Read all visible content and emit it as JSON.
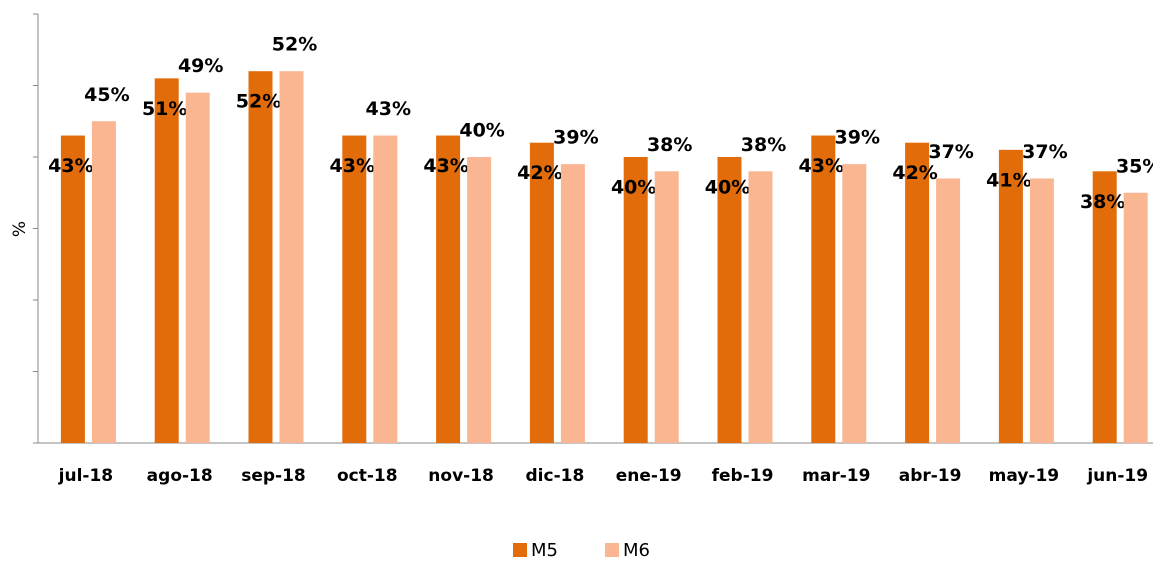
{
  "chart_data": {
    "type": "bar",
    "y_label": "%",
    "categories": [
      "jul-18",
      "ago-18",
      "sep-18",
      "oct-18",
      "nov-18",
      "dic-18",
      "ene-19",
      "feb-19",
      "mar-19",
      "abr-19",
      "may-19",
      "jun-19"
    ],
    "series": [
      {
        "name": "M5",
        "color": "#e36c0a",
        "values": [
          43,
          51,
          52,
          43,
          43,
          42,
          40,
          40,
          43,
          42,
          41,
          38
        ],
        "value_labels": [
          "43%",
          "51%",
          "52%",
          "43%",
          "43%",
          "42%",
          "40%",
          "40%",
          "43%",
          "42%",
          "41%",
          "38%"
        ]
      },
      {
        "name": "M6",
        "color": "#fab591",
        "values": [
          45,
          49,
          52,
          43,
          40,
          39,
          38,
          38,
          39,
          37,
          37,
          35
        ],
        "value_labels": [
          "45%",
          "49%",
          "52%",
          "43%",
          "40%",
          "39%",
          "38%",
          "38%",
          "39%",
          "37%",
          "37%",
          "35%"
        ]
      }
    ],
    "ylim": [
      0,
      60
    ],
    "yticks": [
      0,
      10,
      20,
      30,
      40,
      50,
      60
    ],
    "legend": "bottom"
  }
}
